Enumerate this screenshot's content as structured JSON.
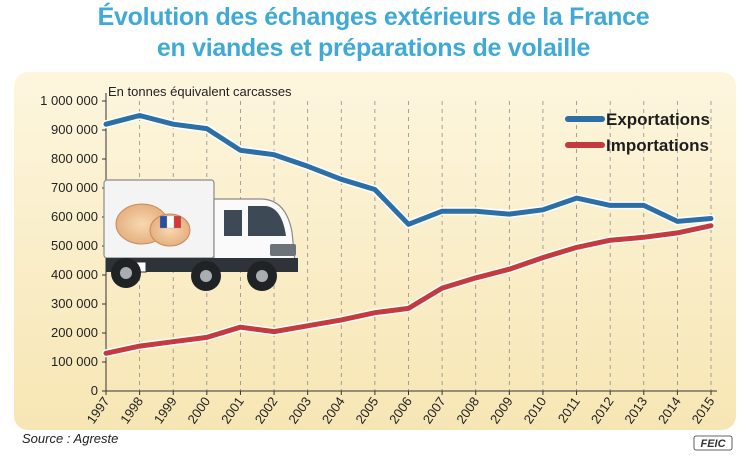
{
  "title_lines": [
    "Évolution des échanges extérieurs de la France",
    "en viandes et préparations de volaille"
  ],
  "source": "Source : Agreste",
  "credit": "FEIC",
  "colors": {
    "title": "#3fa9d8",
    "exports": "#2c6fa6",
    "imports": "#c43b3d",
    "plot_background": "#fbf0cf",
    "outer_background": "#ffffff"
  },
  "illustration": {
    "type": "truck-icon",
    "cargo": "poultry-icon",
    "flag": "french-flag-icon"
  },
  "chart_data": {
    "type": "line",
    "title": "Évolution des échanges extérieurs de la France en viandes et préparations de volaille",
    "ylabel": "En tonnes équivalent carcasses",
    "xlabel": "",
    "x": [
      "1997",
      "1998",
      "1999",
      "2000",
      "2001",
      "2002",
      "2003",
      "2004",
      "2005",
      "2006",
      "2007",
      "2008",
      "2009",
      "2010",
      "2011",
      "2012",
      "2013",
      "2014",
      "2015"
    ],
    "ylim": [
      0,
      1000000
    ],
    "yticks": [
      0,
      100000,
      200000,
      300000,
      400000,
      500000,
      600000,
      700000,
      800000,
      900000,
      1000000
    ],
    "ytick_labels": [
      "0",
      "100 000",
      "200 000",
      "300 000",
      "400 000",
      "500 000",
      "600 000",
      "700 000",
      "800 000",
      "900 000",
      "1 000 000"
    ],
    "grid": "vertical-dashed",
    "legend_position": "top-right",
    "series": [
      {
        "name": "Exportations",
        "color": "#2c6fa6",
        "values": [
          920000,
          950000,
          920000,
          905000,
          830000,
          815000,
          775000,
          730000,
          695000,
          575000,
          620000,
          620000,
          610000,
          625000,
          665000,
          640000,
          640000,
          585000,
          595000
        ]
      },
      {
        "name": "Importations",
        "color": "#c43b3d",
        "values": [
          130000,
          155000,
          170000,
          185000,
          220000,
          205000,
          225000,
          245000,
          270000,
          285000,
          355000,
          390000,
          420000,
          460000,
          495000,
          520000,
          530000,
          545000,
          570000
        ]
      }
    ]
  }
}
